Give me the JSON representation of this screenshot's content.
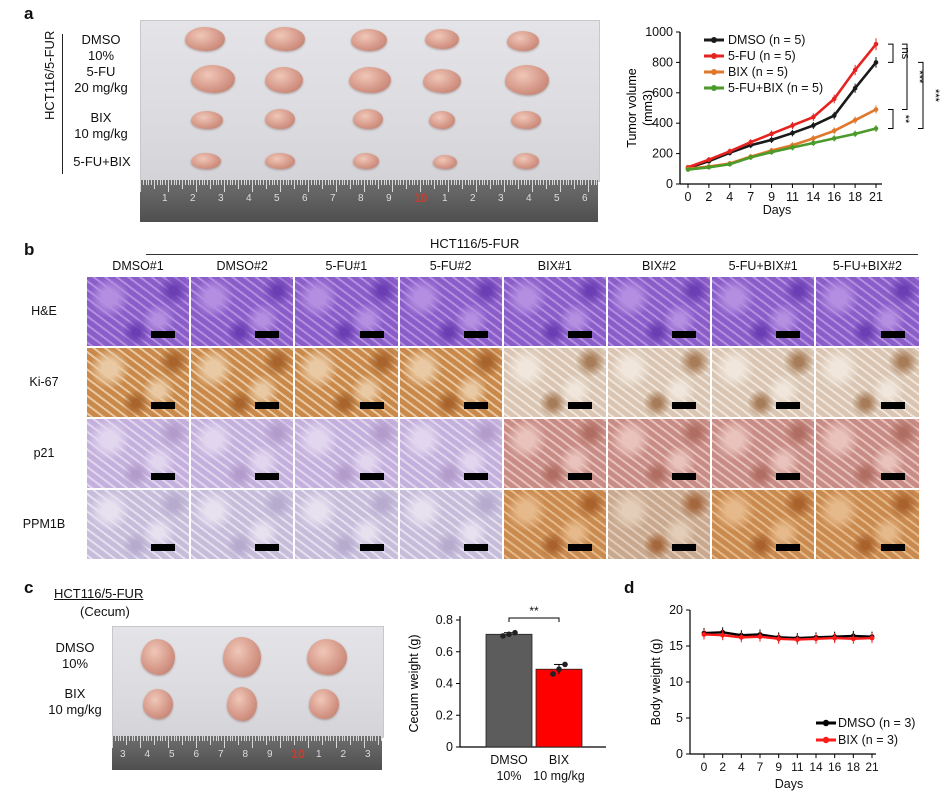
{
  "panel_a": {
    "letter": "a",
    "cell_line": "HCT116/5-FUR",
    "groups": [
      {
        "line1": "DMSO",
        "line2": "10%"
      },
      {
        "line1": "5-FU",
        "line2": "20 mg/kg"
      },
      {
        "line1": "BIX",
        "line2": "10 mg/kg"
      },
      {
        "line1": "5-FU+BIX",
        "line2": ""
      }
    ],
    "ruler_labels": [
      "1",
      "2",
      "3",
      "4",
      "5",
      "6",
      "7",
      "8",
      "9",
      "10",
      "1",
      "2",
      "3",
      "4",
      "5",
      "6"
    ]
  },
  "panel_b": {
    "letter": "b",
    "cell_line": "HCT116/5-FUR",
    "columns": [
      "DMSO#1",
      "DMSO#2",
      "5-FU#1",
      "5-FU#2",
      "BIX#1",
      "BIX#2",
      "5-FU+BIX#1",
      "5-FU+BIX#2"
    ],
    "rows": [
      "H&E",
      "Ki-67",
      "p21",
      "PPM1B"
    ]
  },
  "panel_c": {
    "letter": "c",
    "cell_line": "HCT116/5-FUR",
    "tissue": "(Cecum)",
    "groups": [
      {
        "line1": "DMSO",
        "line2": "10%"
      },
      {
        "line1": "BIX",
        "line2": "10 mg/kg"
      }
    ],
    "ruler_labels": [
      "3",
      "4",
      "5",
      "6",
      "7",
      "8",
      "9",
      "10",
      "1",
      "2",
      "3"
    ]
  },
  "panel_d": {
    "letter": "d"
  },
  "chart_data": [
    {
      "type": "line",
      "panel": "a",
      "ylabel": "Tumor volume (mm3)",
      "xlabel": "Days",
      "x": [
        0,
        2,
        4,
        7,
        9,
        11,
        14,
        16,
        18,
        21
      ],
      "ylim": [
        0,
        1000
      ],
      "yticks": [
        0,
        200,
        400,
        600,
        800,
        1000
      ],
      "series": [
        {
          "name": "DMSO (n = 5)",
          "color": "#1a1a1a",
          "values": [
            105,
            150,
            205,
            255,
            290,
            335,
            385,
            450,
            630,
            800
          ]
        },
        {
          "name": "5-FU (n = 5)",
          "color": "#e52421",
          "values": [
            110,
            160,
            215,
            275,
            330,
            385,
            440,
            560,
            750,
            920
          ]
        },
        {
          "name": "BIX (n = 5)",
          "color": "#e0772a",
          "values": [
            100,
            115,
            135,
            180,
            220,
            255,
            300,
            350,
            420,
            490
          ]
        },
        {
          "name": "5-FU+BIX (n = 5)",
          "color": "#4c9a2a",
          "values": [
            95,
            110,
            130,
            175,
            210,
            240,
            270,
            300,
            330,
            365
          ]
        }
      ],
      "significance": [
        "ns",
        "***",
        "***",
        "**"
      ]
    },
    {
      "type": "bar",
      "panel": "c",
      "ylabel": "Cecum weight (g)",
      "categories": [
        "DMSO\n10%",
        "BIX\n10 mg/kg"
      ],
      "category_lines": [
        [
          "DMSO",
          "10%"
        ],
        [
          "BIX",
          "10 mg/kg"
        ]
      ],
      "values": [
        0.71,
        0.49
      ],
      "errors": [
        0.01,
        0.03
      ],
      "points": [
        [
          0.7,
          0.71,
          0.72
        ],
        [
          0.46,
          0.49,
          0.52
        ]
      ],
      "colors": [
        "#5c5c5c",
        "#ff0000"
      ],
      "ylim": [
        0,
        0.8
      ],
      "yticks": [
        0,
        0.2,
        0.4,
        0.6,
        0.8
      ],
      "significance": "**"
    },
    {
      "type": "line",
      "panel": "d",
      "ylabel": "Body weight (g)",
      "xlabel": "Days",
      "x": [
        0,
        2,
        4,
        7,
        9,
        11,
        14,
        16,
        18,
        21
      ],
      "ylim": [
        0,
        20
      ],
      "yticks": [
        0,
        5,
        10,
        15,
        20
      ],
      "series": [
        {
          "name": "DMSO (n = 3)",
          "color": "#000000",
          "values": [
            16.8,
            16.9,
            16.5,
            16.6,
            16.2,
            16.1,
            16.2,
            16.3,
            16.4,
            16.3
          ]
        },
        {
          "name": "BIX (n = 3)",
          "color": "#ff1a1a",
          "values": [
            16.6,
            16.5,
            16.2,
            16.3,
            16.0,
            15.9,
            16.0,
            16.1,
            16.0,
            16.1
          ]
        }
      ]
    }
  ]
}
